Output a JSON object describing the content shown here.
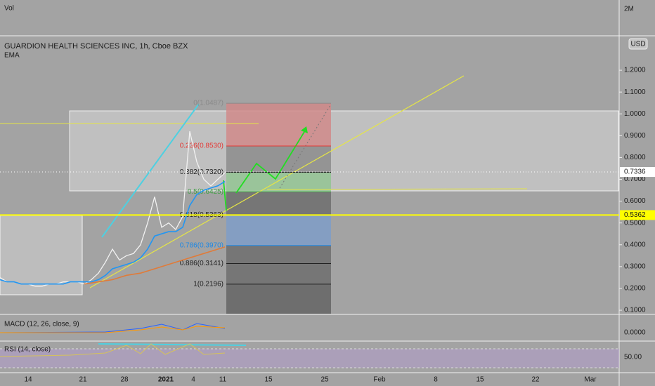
{
  "chart_data": {
    "type": "line",
    "title": "GUARDION HEALTH SCIENCES INC, 1h, Cboe BZX",
    "volume_label": "Vol",
    "volume_tick": "2M",
    "currency": "USD",
    "ylim": [
      0.084,
      1.345
    ],
    "yticks": [
      {
        "value": 0.1,
        "label": "0.1000"
      },
      {
        "value": 0.2,
        "label": "0.2000"
      },
      {
        "value": 0.3,
        "label": "0.3000"
      },
      {
        "value": 0.4,
        "label": "0.4000"
      },
      {
        "value": 0.5,
        "label": "0.5000"
      },
      {
        "value": 0.6,
        "label": "0.6000"
      },
      {
        "value": 0.7,
        "label": "0.7000"
      },
      {
        "value": 0.8,
        "label": "0.8000"
      },
      {
        "value": 0.9,
        "label": "0.9000"
      },
      {
        "value": 1.0,
        "label": "1.0000"
      },
      {
        "value": 1.1,
        "label": "1.1000"
      },
      {
        "value": 1.2,
        "label": "1.2000"
      }
    ],
    "x_labels": [
      "14",
      "21",
      "28",
      "2021",
      "4",
      "11",
      "15",
      "25",
      "Feb",
      "8",
      "15",
      "22",
      "Mar"
    ],
    "series": [
      {
        "color": "#f2f2f2",
        "values": [
          0.25,
          0.23,
          0.23,
          0.22,
          0.22,
          0.21,
          0.21,
          0.22,
          0.22,
          0.23,
          0.23,
          0.23,
          0.22,
          0.24,
          0.27,
          0.32,
          0.38,
          0.33,
          0.35,
          0.36,
          0.4,
          0.5,
          0.62,
          0.48,
          0.5,
          0.47,
          0.53,
          0.92,
          0.78,
          0.7,
          0.67,
          0.7,
          0.73
        ]
      },
      {
        "name": "EMA",
        "color": "#2196f3",
        "values": [
          0.24,
          0.23,
          0.23,
          0.22,
          0.22,
          0.22,
          0.22,
          0.22,
          0.22,
          0.22,
          0.23,
          0.23,
          0.23,
          0.23,
          0.24,
          0.26,
          0.29,
          0.3,
          0.31,
          0.32,
          0.34,
          0.38,
          0.44,
          0.45,
          0.46,
          0.46,
          0.48,
          0.58,
          0.63,
          0.65,
          0.66,
          0.67,
          0.69
        ]
      },
      {
        "color": "#e07b39",
        "values": [
          null,
          null,
          null,
          null,
          null,
          null,
          null,
          null,
          null,
          null,
          null,
          null,
          0.22,
          0.225,
          0.23,
          0.235,
          0.24,
          0.25,
          0.26,
          0.265,
          0.27,
          0.28,
          0.29,
          0.3,
          0.31,
          0.32,
          0.33,
          0.34,
          0.35,
          0.36,
          0.37,
          0.38,
          0.39
        ]
      }
    ],
    "price_tags": [
      {
        "value": 0.7336,
        "label": "0.7336",
        "color": "#ffffff"
      },
      {
        "value": 0.5362,
        "label": "0.5362",
        "color": "#ffff00"
      }
    ],
    "fib_levels": [
      {
        "value": 1.0487,
        "label": "0(1.0487)",
        "color": "#8a8a8a"
      },
      {
        "value": 0.853,
        "label": "0.236(0.8530)",
        "color": "#e53935"
      },
      {
        "value": 0.732,
        "label": "0.382(0.7320)",
        "color": "#222222"
      },
      {
        "value": 0.6425,
        "label": "0.5(0.6425)",
        "color": "#43a047"
      },
      {
        "value": 0.5363,
        "label": "0.618(0.5363)",
        "color": "#222222"
      },
      {
        "value": 0.397,
        "label": "0.786(0.3970)",
        "color": "#1e88e5"
      },
      {
        "value": 0.3141,
        "label": "0.886(0.3141)",
        "color": "#222222"
      },
      {
        "value": 0.2196,
        "label": "1(0.2196)",
        "color": "#222222"
      }
    ],
    "macd_label": "MACD (12, 26, close, 9)",
    "macd_tick": "0.0000",
    "rsi_label": "RSI (14, close)",
    "rsi_tick": "50.00"
  }
}
